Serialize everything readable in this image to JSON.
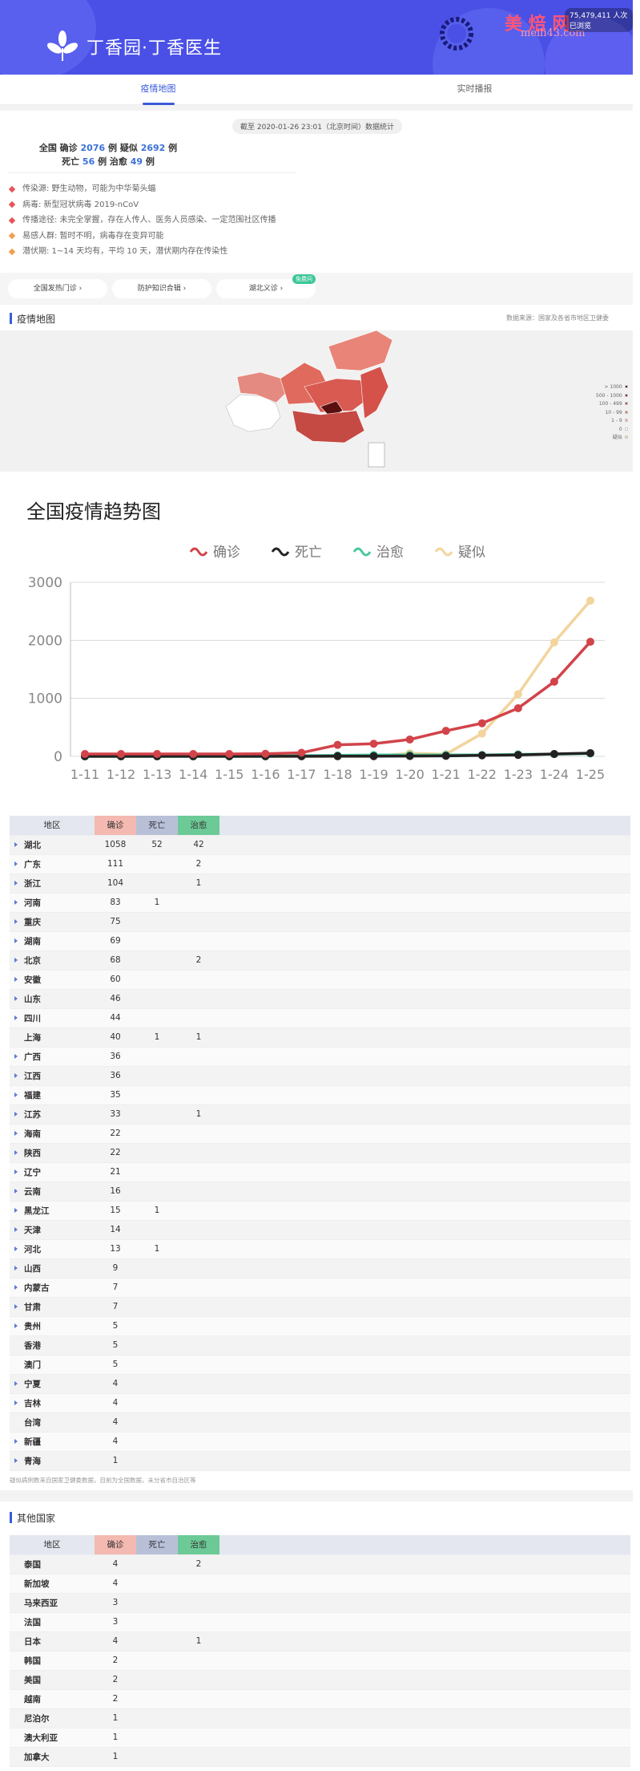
{
  "header": {
    "brand": "丁香园·丁香医生",
    "watermark": "美 焙 网",
    "watermark_url": "meili43.com",
    "visits": "75,479,411 人次已浏览"
  },
  "tabs": [
    {
      "label": "疫情地图",
      "active": true
    },
    {
      "label": "实时播报",
      "active": false
    }
  ],
  "summary": {
    "timestamp": "截至 2020-01-26 23:01（北京时间）数据统计",
    "line1_prefix": "全国 确诊",
    "confirmed": "2076",
    "line1_mid": "例 疑似",
    "suspected": "2692",
    "line1_suffix": "例",
    "line2_prefix": "死亡",
    "deaths": "56",
    "line2_mid": "例 治愈",
    "cured": "49",
    "line2_suffix": "例"
  },
  "facts": [
    {
      "text": "传染源: 野生动物，可能为中华菊头蝠",
      "color": "#e8555a"
    },
    {
      "text": "病毒: 新型冠状病毒 2019-nCoV",
      "color": "#e8555a"
    },
    {
      "text": "传播途径: 未完全掌握，存在人传人、医务人员感染、一定范围社区传播",
      "color": "#e8555a"
    },
    {
      "text": "易感人群: 暂时不明，病毒存在变异可能",
      "color": "#f0a050"
    },
    {
      "text": "潜伏期: 1~14 天均有，平均 10 天，潜伏期内存在传染性",
      "color": "#f0a050"
    }
  ],
  "pills": [
    {
      "label": "全国发热门诊"
    },
    {
      "label": "防护知识合辑"
    },
    {
      "label": "湖北义诊",
      "badge": "免费问"
    }
  ],
  "map_section": {
    "title": "疫情地图",
    "source": "数据来源：国家及各省市地区卫健委"
  },
  "map_legend": [
    {
      "label": "> 1000",
      "color": "#5a0f0f"
    },
    {
      "label": "500 - 1000",
      "color": "#8a1f1f"
    },
    {
      "label": "100 - 499",
      "color": "#b73a3a"
    },
    {
      "label": "10 - 99",
      "color": "#e06a5e"
    },
    {
      "label": "1 - 9",
      "color": "#f3a69a"
    },
    {
      "label": "0",
      "color": "#ffffff"
    },
    {
      "label": "疑似",
      "color": "#f5d39b"
    }
  ],
  "chart_data": {
    "type": "line",
    "title": "全国疫情趋势图",
    "categories": [
      "1-11",
      "1-12",
      "1-13",
      "1-14",
      "1-15",
      "1-16",
      "1-17",
      "1-18",
      "1-19",
      "1-20",
      "1-21",
      "1-22",
      "1-23",
      "1-24",
      "1-25"
    ],
    "ylim": [
      0,
      3000
    ],
    "yticks": [
      0,
      1000,
      2000,
      3000
    ],
    "series": [
      {
        "name": "确诊",
        "color": "#d2434a",
        "values": [
          41,
          41,
          41,
          41,
          41,
          45,
          62,
          198,
          218,
          291,
          440,
          571,
          830,
          1287,
          1975
        ]
      },
      {
        "name": "死亡",
        "color": "#222222",
        "values": [
          1,
          1,
          1,
          1,
          2,
          2,
          2,
          3,
          4,
          6,
          9,
          17,
          25,
          41,
          56
        ]
      },
      {
        "name": "治愈",
        "color": "#4cc79c",
        "values": [
          0,
          0,
          0,
          0,
          0,
          0,
          12,
          17,
          25,
          25,
          25,
          25,
          34,
          38,
          49
        ]
      },
      {
        "name": "疑似",
        "color": "#f2d49c",
        "values": [
          0,
          0,
          0,
          0,
          0,
          0,
          0,
          0,
          0,
          54,
          37,
          393,
          1072,
          1965,
          2684
        ]
      }
    ]
  },
  "china_table": {
    "headers": [
      "地区",
      "确诊",
      "死亡",
      "治愈"
    ],
    "rows": [
      {
        "area": "湖北",
        "confirmed": "1058",
        "dead": "52",
        "cured": "42",
        "arrow": true
      },
      {
        "area": "广东",
        "confirmed": "111",
        "dead": "",
        "cured": "2",
        "arrow": true
      },
      {
        "area": "浙江",
        "confirmed": "104",
        "dead": "",
        "cured": "1",
        "arrow": true
      },
      {
        "area": "河南",
        "confirmed": "83",
        "dead": "1",
        "cured": "",
        "arrow": true
      },
      {
        "area": "重庆",
        "confirmed": "75",
        "dead": "",
        "cured": "",
        "arrow": true
      },
      {
        "area": "湖南",
        "confirmed": "69",
        "dead": "",
        "cured": "",
        "arrow": true
      },
      {
        "area": "北京",
        "confirmed": "68",
        "dead": "",
        "cured": "2",
        "arrow": true
      },
      {
        "area": "安徽",
        "confirmed": "60",
        "dead": "",
        "cured": "",
        "arrow": true
      },
      {
        "area": "山东",
        "confirmed": "46",
        "dead": "",
        "cured": "",
        "arrow": true
      },
      {
        "area": "四川",
        "confirmed": "44",
        "dead": "",
        "cured": "",
        "arrow": true
      },
      {
        "area": "上海",
        "confirmed": "40",
        "dead": "1",
        "cured": "1",
        "arrow": false
      },
      {
        "area": "广西",
        "confirmed": "36",
        "dead": "",
        "cured": "",
        "arrow": true
      },
      {
        "area": "江西",
        "confirmed": "36",
        "dead": "",
        "cured": "",
        "arrow": true
      },
      {
        "area": "福建",
        "confirmed": "35",
        "dead": "",
        "cured": "",
        "arrow": true
      },
      {
        "area": "江苏",
        "confirmed": "33",
        "dead": "",
        "cured": "1",
        "arrow": true
      },
      {
        "area": "海南",
        "confirmed": "22",
        "dead": "",
        "cured": "",
        "arrow": true
      },
      {
        "area": "陕西",
        "confirmed": "22",
        "dead": "",
        "cured": "",
        "arrow": true
      },
      {
        "area": "辽宁",
        "confirmed": "21",
        "dead": "",
        "cured": "",
        "arrow": true
      },
      {
        "area": "云南",
        "confirmed": "16",
        "dead": "",
        "cured": "",
        "arrow": true
      },
      {
        "area": "黑龙江",
        "confirmed": "15",
        "dead": "1",
        "cured": "",
        "arrow": true
      },
      {
        "area": "天津",
        "confirmed": "14",
        "dead": "",
        "cured": "",
        "arrow": true
      },
      {
        "area": "河北",
        "confirmed": "13",
        "dead": "1",
        "cured": "",
        "arrow": true
      },
      {
        "area": "山西",
        "confirmed": "9",
        "dead": "",
        "cured": "",
        "arrow": true
      },
      {
        "area": "内蒙古",
        "confirmed": "7",
        "dead": "",
        "cured": "",
        "arrow": true
      },
      {
        "area": "甘肃",
        "confirmed": "7",
        "dead": "",
        "cured": "",
        "arrow": true
      },
      {
        "area": "贵州",
        "confirmed": "5",
        "dead": "",
        "cured": "",
        "arrow": true
      },
      {
        "area": "香港",
        "confirmed": "5",
        "dead": "",
        "cured": "",
        "arrow": false
      },
      {
        "area": "澳门",
        "confirmed": "5",
        "dead": "",
        "cured": "",
        "arrow": false
      },
      {
        "area": "宁夏",
        "confirmed": "4",
        "dead": "",
        "cured": "",
        "arrow": true
      },
      {
        "area": "吉林",
        "confirmed": "4",
        "dead": "",
        "cured": "",
        "arrow": true
      },
      {
        "area": "台湾",
        "confirmed": "4",
        "dead": "",
        "cured": "",
        "arrow": false
      },
      {
        "area": "新疆",
        "confirmed": "4",
        "dead": "",
        "cured": "",
        "arrow": true
      },
      {
        "area": "青海",
        "confirmed": "1",
        "dead": "",
        "cured": "",
        "arrow": true
      }
    ]
  },
  "table_note": "疑似病例数来自国家卫健委数据，目前为全国数据，未分省市自治区等",
  "other_section": {
    "title": "其他国家"
  },
  "other_table": {
    "headers": [
      "地区",
      "确诊",
      "死亡",
      "治愈"
    ],
    "rows": [
      {
        "area": "泰国",
        "confirmed": "4",
        "dead": "",
        "cured": "2"
      },
      {
        "area": "新加坡",
        "confirmed": "4",
        "dead": "",
        "cured": ""
      },
      {
        "area": "马来西亚",
        "confirmed": "3",
        "dead": "",
        "cured": ""
      },
      {
        "area": "法国",
        "confirmed": "3",
        "dead": "",
        "cured": ""
      },
      {
        "area": "日本",
        "confirmed": "4",
        "dead": "",
        "cured": "1"
      },
      {
        "area": "韩国",
        "confirmed": "2",
        "dead": "",
        "cured": ""
      },
      {
        "area": "美国",
        "confirmed": "2",
        "dead": "",
        "cured": ""
      },
      {
        "area": "越南",
        "confirmed": "2",
        "dead": "",
        "cured": ""
      },
      {
        "area": "尼泊尔",
        "confirmed": "1",
        "dead": "",
        "cured": ""
      },
      {
        "area": "澳大利亚",
        "confirmed": "1",
        "dead": "",
        "cured": ""
      },
      {
        "area": "加拿大",
        "confirmed": "1",
        "dead": "",
        "cured": ""
      }
    ]
  }
}
